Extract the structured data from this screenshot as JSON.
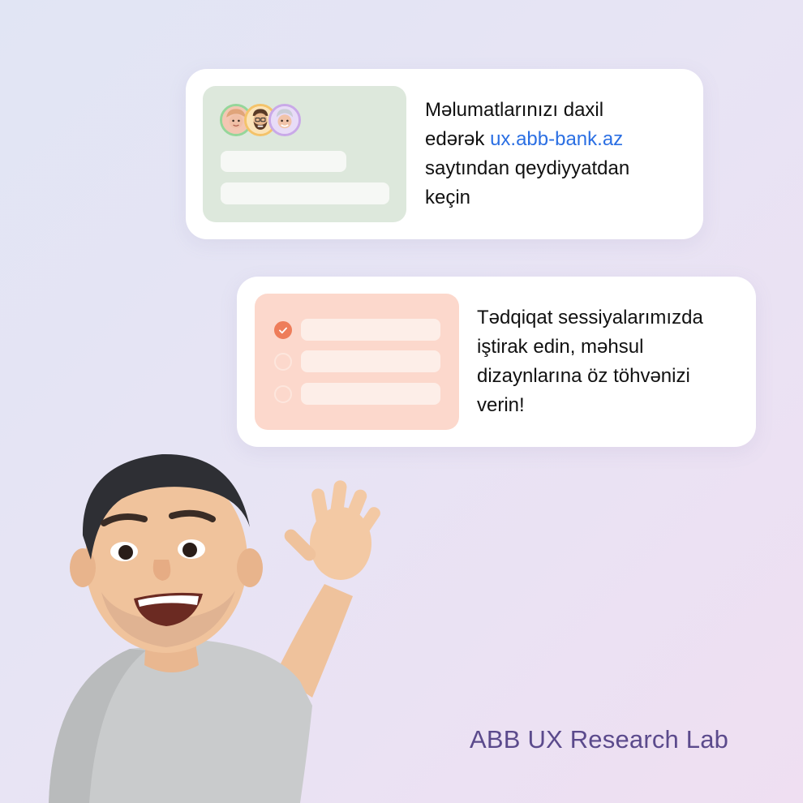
{
  "card1": {
    "line1": "Məlumatlarınızı daxil",
    "line2_prefix": "edərək ",
    "link": "ux.abb-bank.az",
    "line3": "saytından qeydiyyatdan",
    "line4": "keçin"
  },
  "card2": {
    "line1": "Tədqiqat sessiyalarımızda",
    "line2": "iştirak edin, məhsul",
    "line3": "dizaynlarına öz töhvənizi",
    "line4": "verin!"
  },
  "brand": {
    "label": "ABB UX Research Lab"
  },
  "colors": {
    "link": "#2b6fe3",
    "brand": "#5b4a8c",
    "card1_thumb": "#dde8dc",
    "card2_thumb": "#fcd8cc",
    "check_accent": "#ee7d5a"
  },
  "icons": {
    "avatars": [
      "memoji-avatar-woman-icon",
      "memoji-avatar-bearded-man-icon",
      "memoji-avatar-grey-hair-icon"
    ],
    "checkbox_checked": "check-icon",
    "mascot": "waving-memoji-man-illustration"
  }
}
